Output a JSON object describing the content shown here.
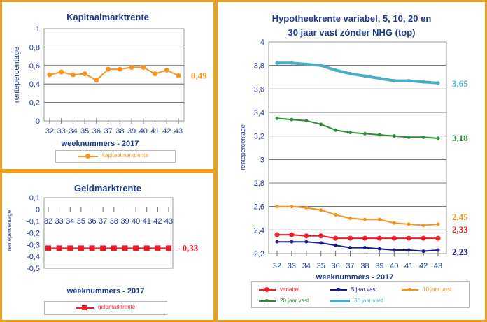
{
  "chart_data": [
    {
      "id": "kapitaal",
      "type": "line",
      "title": "Kapitaalmarktrente",
      "xlabel": "weeknummers - 2017",
      "ylabel": "rentepercentage",
      "categories": [
        "32",
        "33",
        "34",
        "35",
        "36",
        "37",
        "38",
        "39",
        "40",
        "41",
        "42",
        "43"
      ],
      "ylim": [
        0,
        1
      ],
      "yticks": [
        "0",
        "0,2",
        "0,4",
        "0,6",
        "0,8",
        "1"
      ],
      "grid": true,
      "legend_position": "bottom",
      "series": [
        {
          "name": "kapitaalmarktrente",
          "color": "#f7941d",
          "values": [
            0.5,
            0.53,
            0.5,
            0.51,
            0.44,
            0.56,
            0.56,
            0.58,
            0.58,
            0.51,
            0.55,
            0.49
          ],
          "end_label": "0,49"
        }
      ]
    },
    {
      "id": "geld",
      "type": "line",
      "title": "Geldmarktrente",
      "xlabel": "weeknummers - 2017",
      "ylabel": "rentepercentage",
      "categories": [
        "32",
        "33",
        "34",
        "35",
        "36",
        "37",
        "38",
        "39",
        "40",
        "41",
        "42",
        "43"
      ],
      "ylim": [
        -0.5,
        0.1
      ],
      "yticks": [
        "-0,5",
        "-0,4",
        "-0,3",
        "-0,2",
        "-0,1",
        "0",
        "0,1"
      ],
      "grid": false,
      "legend_position": "bottom",
      "series": [
        {
          "name": "geldmarktrente",
          "color": "#ee1c25",
          "values": [
            -0.33,
            -0.33,
            -0.33,
            -0.33,
            -0.33,
            -0.33,
            -0.33,
            -0.33,
            -0.33,
            -0.33,
            -0.33,
            -0.33
          ],
          "end_label": "- 0,33"
        }
      ]
    },
    {
      "id": "hypotheek",
      "type": "line",
      "title": "Hypotheekrente variabel, 5, 10, 20 en 30 jaar vast zónder NHG (top)",
      "title_lines": [
        "Hypotheekrente variabel, 5, 10, 20 en",
        "30 jaar vast zónder NHG (top)"
      ],
      "xlabel": "weeknummers - 2017",
      "ylabel": "rentepercentage",
      "categories": [
        "32",
        "33",
        "34",
        "35",
        "36",
        "37",
        "38",
        "39",
        "40",
        "41",
        "42",
        "43"
      ],
      "ylim": [
        2.2,
        4
      ],
      "yticks": [
        "2,2",
        "2,4",
        "2,6",
        "2,8",
        "3",
        "3,2",
        "3,4",
        "3,6",
        "3,8",
        "4"
      ],
      "grid": true,
      "legend_position": "bottom",
      "series": [
        {
          "name": "variabel",
          "color": "#ee1c25",
          "values": [
            2.36,
            2.36,
            2.35,
            2.35,
            2.33,
            2.33,
            2.33,
            2.33,
            2.33,
            2.33,
            2.33,
            2.33
          ],
          "end_label": "2,33"
        },
        {
          "name": "5 jaar vast",
          "color": "#1a1a8c",
          "values": [
            2.3,
            2.3,
            2.3,
            2.29,
            2.27,
            2.25,
            2.25,
            2.24,
            2.23,
            2.23,
            2.22,
            2.23
          ],
          "end_label": "2,23"
        },
        {
          "name": "10 jaar vast",
          "color": "#f7941d",
          "values": [
            2.6,
            2.6,
            2.59,
            2.57,
            2.53,
            2.5,
            2.49,
            2.49,
            2.46,
            2.45,
            2.44,
            2.45
          ],
          "end_label": "2,45"
        },
        {
          "name": "20 jaar vast",
          "color": "#2e8b3a",
          "values": [
            3.35,
            3.34,
            3.33,
            3.3,
            3.25,
            3.23,
            3.22,
            3.21,
            3.2,
            3.19,
            3.19,
            3.18
          ],
          "end_label": "3,18"
        },
        {
          "name": "30 jaar vast",
          "color": "#4bacc6",
          "values": [
            3.82,
            3.82,
            3.81,
            3.8,
            3.76,
            3.73,
            3.71,
            3.69,
            3.67,
            3.67,
            3.66,
            3.65
          ],
          "end_label": "3,65"
        }
      ]
    }
  ]
}
